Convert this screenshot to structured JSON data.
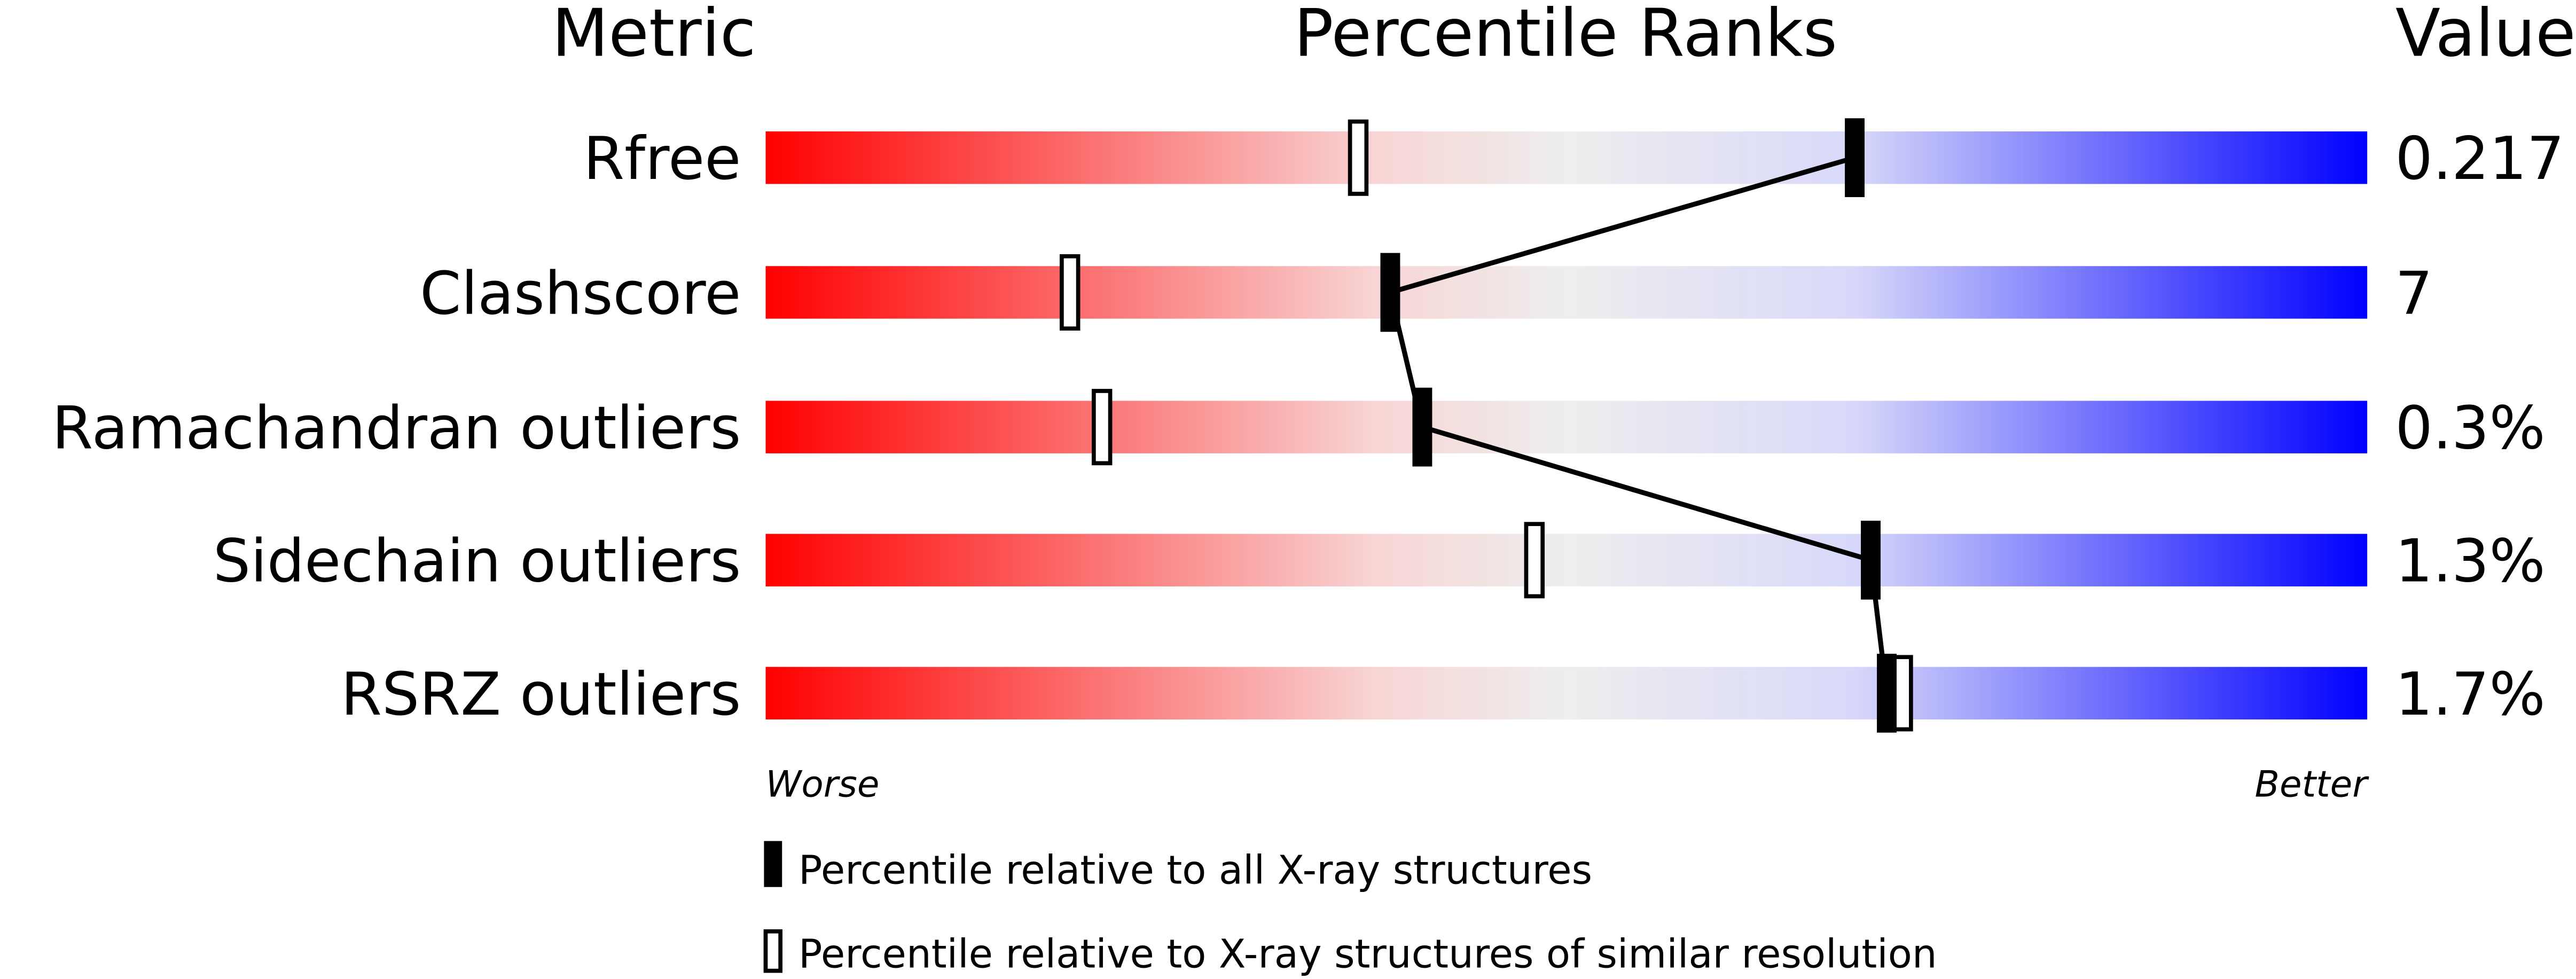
{
  "chart_data": {
    "type": "percentile-slider",
    "headers": {
      "metric": "Metric",
      "ranks": "Percentile Ranks",
      "value": "Value"
    },
    "xlim": [
      0,
      100
    ],
    "scale_labels": {
      "left": "Worse",
      "right": "Better"
    },
    "rows": [
      {
        "metric": "Rfree",
        "value": "0.217",
        "percentile_all": 68,
        "percentile_similar": 37
      },
      {
        "metric": "Clashscore",
        "value": "7",
        "percentile_all": 39,
        "percentile_similar": 19
      },
      {
        "metric": "Ramachandran outliers",
        "value": "0.3%",
        "percentile_all": 41,
        "percentile_similar": 21
      },
      {
        "metric": "Sidechain outliers",
        "value": "1.3%",
        "percentile_all": 69,
        "percentile_similar": 48
      },
      {
        "metric": "RSRZ outliers",
        "value": "1.7%",
        "percentile_all": 70,
        "percentile_similar": 71
      }
    ],
    "legend": {
      "filled": "Percentile relative to all X-ray structures",
      "open": "Percentile relative to X-ray structures of similar resolution"
    },
    "gradient_colors": [
      "#ff0000",
      "#f8d4d4",
      "#eeeeee",
      "#d8d8fa",
      "#0000ff"
    ]
  }
}
